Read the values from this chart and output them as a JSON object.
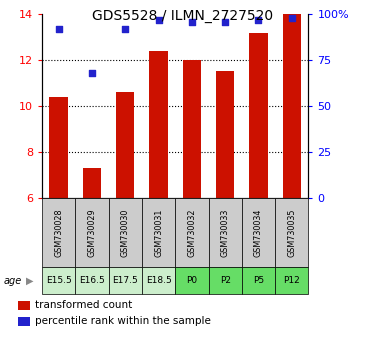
{
  "title": "GDS5528 / ILMN_2727520",
  "samples": [
    "GSM730028",
    "GSM730029",
    "GSM730030",
    "GSM730031",
    "GSM730032",
    "GSM730033",
    "GSM730034",
    "GSM730035"
  ],
  "age_labels": [
    "E15.5",
    "E16.5",
    "E17.5",
    "E18.5",
    "P0",
    "P2",
    "P5",
    "P12"
  ],
  "sample_bg": "#cccccc",
  "age_bg_colors": [
    "#cceecc",
    "#cceecc",
    "#cceecc",
    "#cceecc",
    "#66dd66",
    "#66dd66",
    "#66dd66",
    "#66dd66"
  ],
  "red_values": [
    10.4,
    7.3,
    10.6,
    12.4,
    12.0,
    11.55,
    13.2,
    14.0
  ],
  "blue_values": [
    92,
    68,
    92,
    97,
    96,
    96,
    97,
    98
  ],
  "ylim_left": [
    6,
    14
  ],
  "ylim_right": [
    0,
    100
  ],
  "yticks_left": [
    6,
    8,
    10,
    12,
    14
  ],
  "yticks_right": [
    0,
    25,
    50,
    75,
    100
  ],
  "ytick_labels_right": [
    "0",
    "25",
    "50",
    "75",
    "100%"
  ],
  "bar_color": "#cc1100",
  "dot_color": "#2222cc",
  "bar_width": 0.55,
  "legend_red": "transformed count",
  "legend_blue": "percentile rank within the sample",
  "age_label": "age",
  "title_fontsize": 10
}
